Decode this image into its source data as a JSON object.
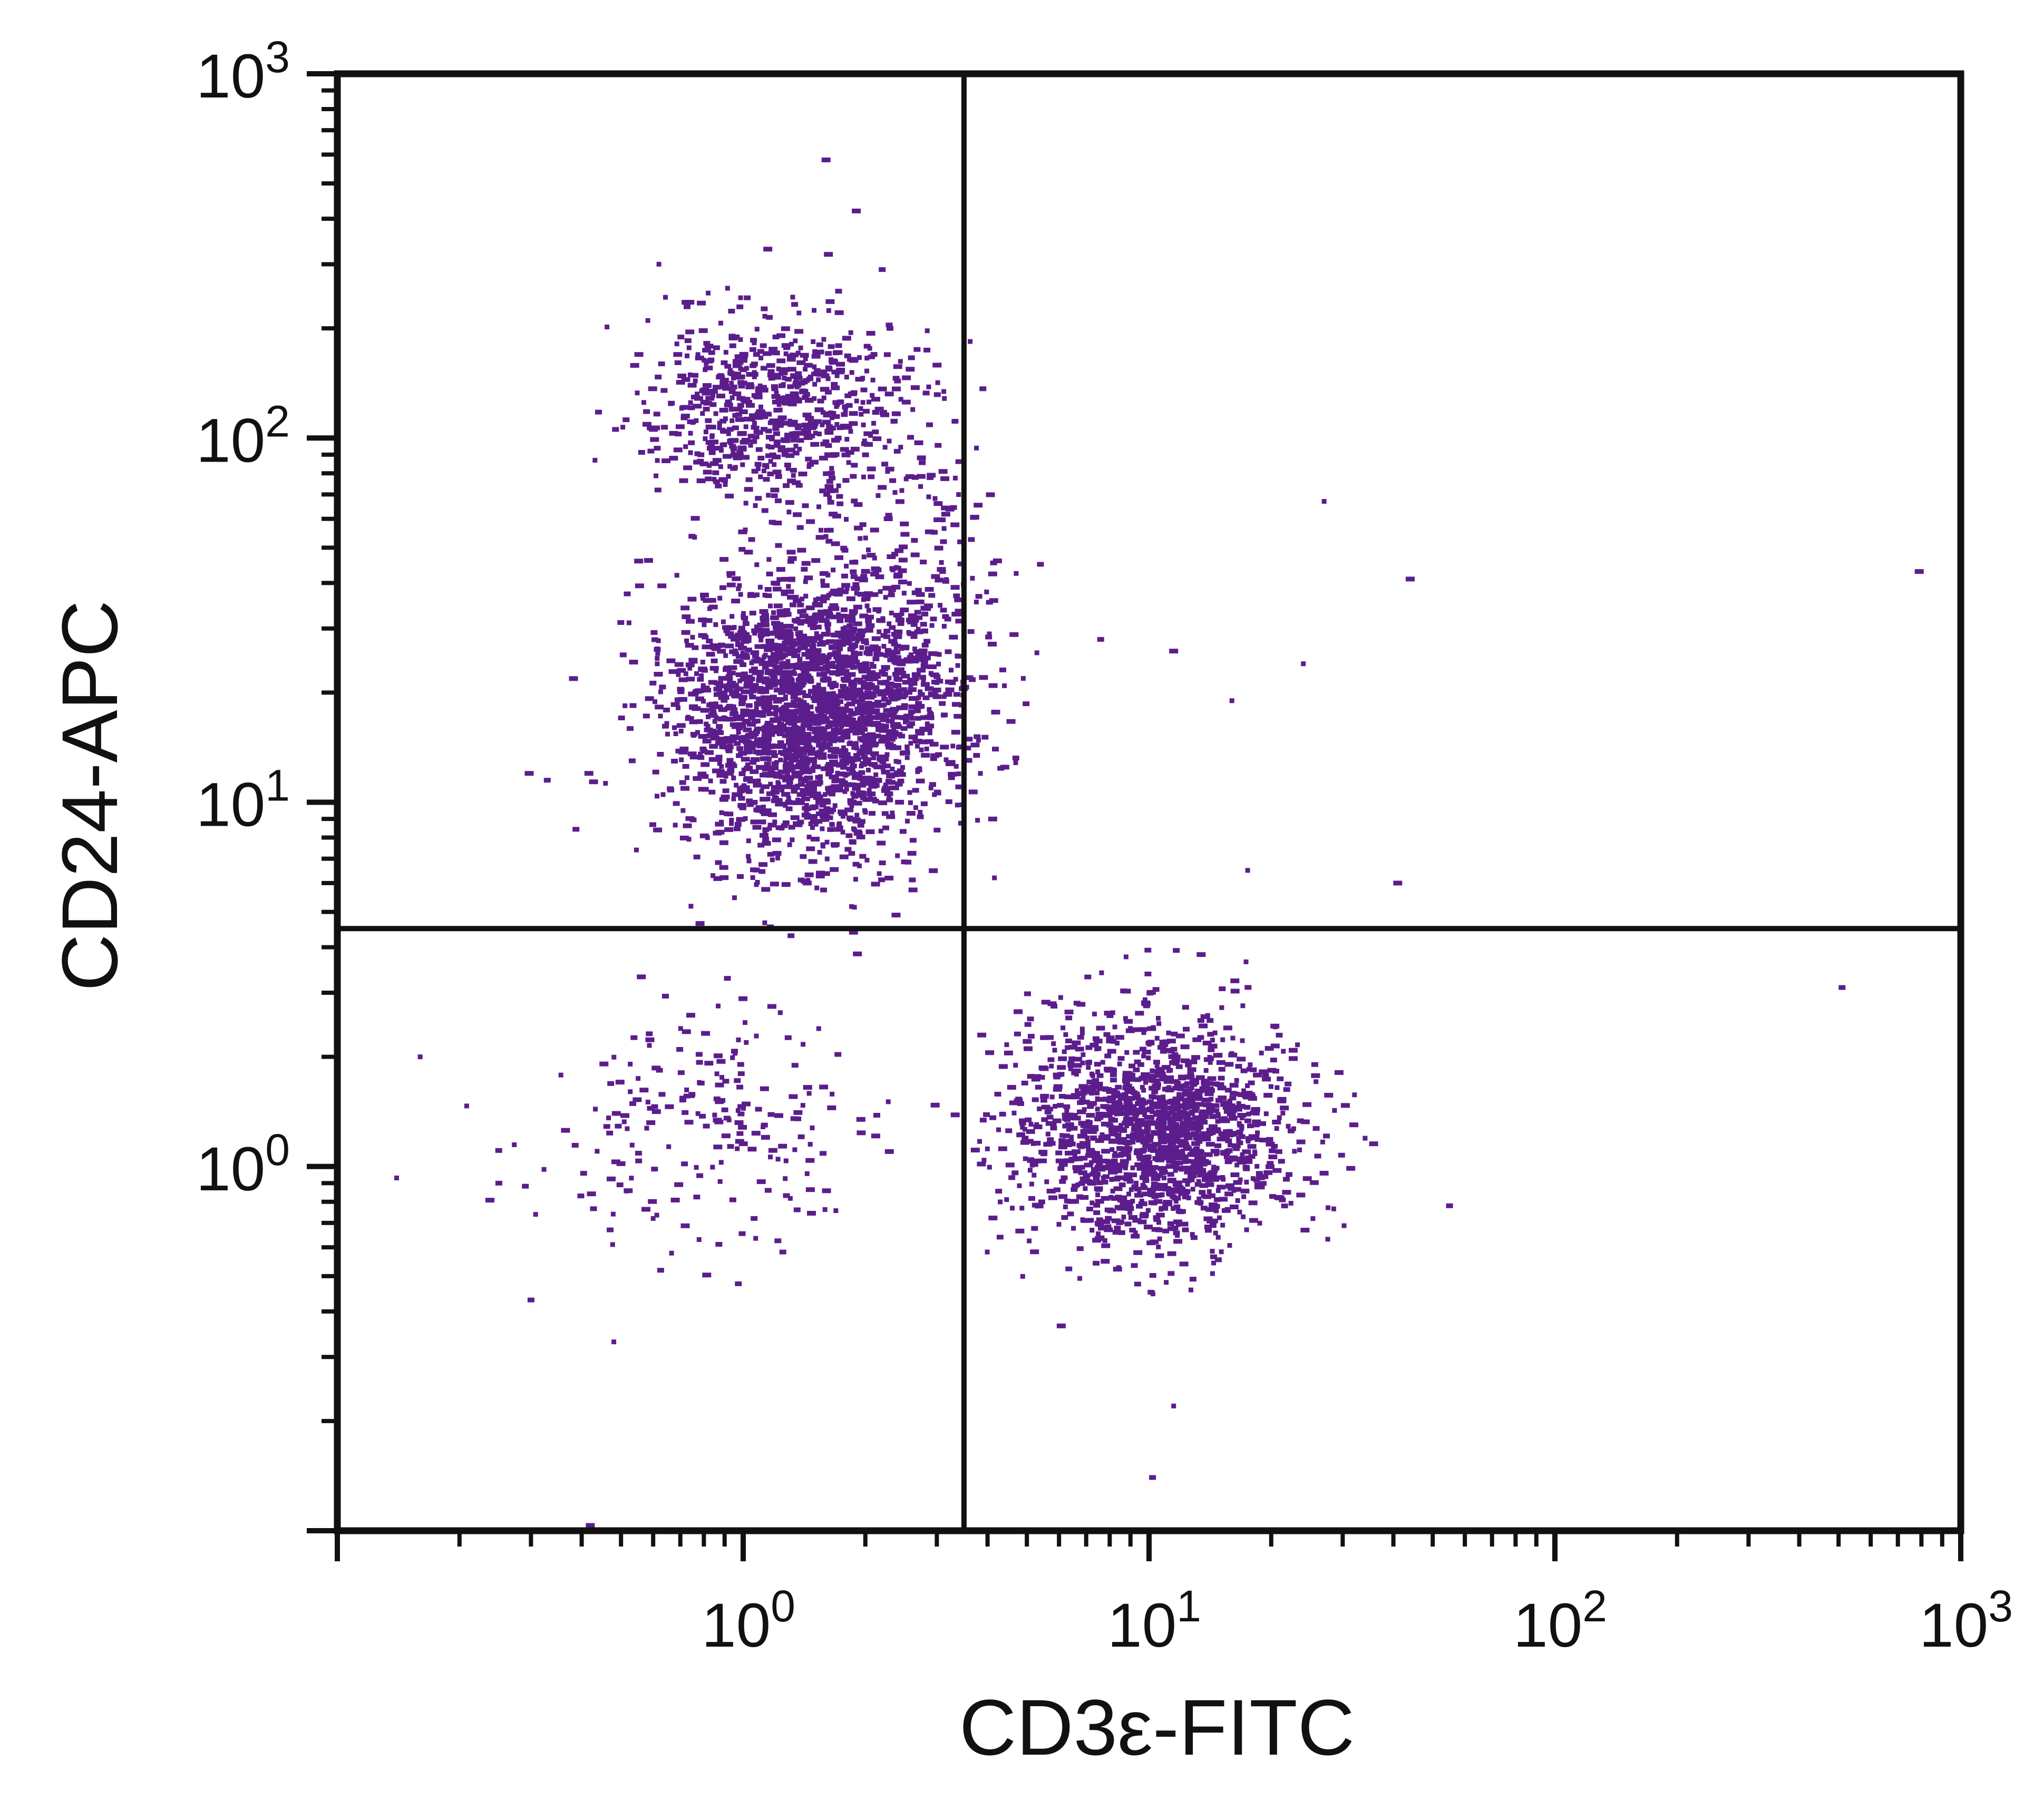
{
  "chart_data": {
    "type": "scatter",
    "title": "",
    "xlabel": "CD3ε-FITC",
    "ylabel": "CD24-APC",
    "x_scale": "log",
    "y_scale": "log",
    "xlim": [
      0.1,
      1000
    ],
    "ylim": [
      0.1,
      1000
    ],
    "x_tick_labels": [
      {
        "value": 1,
        "base": "10",
        "exp": "0"
      },
      {
        "value": 10,
        "base": "10",
        "exp": "1"
      },
      {
        "value": 100,
        "base": "10",
        "exp": "2"
      },
      {
        "value": 1000,
        "base": "10",
        "exp": "3"
      }
    ],
    "y_tick_labels": [
      {
        "value": 1,
        "base": "10",
        "exp": "0"
      },
      {
        "value": 10,
        "base": "10",
        "exp": "1"
      },
      {
        "value": 100,
        "base": "10",
        "exp": "2"
      },
      {
        "value": 1000,
        "base": "10",
        "exp": "3"
      }
    ],
    "grid": false,
    "point_color": "#5c1d8c",
    "quadrant_gate": {
      "x": 3.5,
      "y": 4.5
    },
    "populations": [
      {
        "center": [
          1.5,
          18
        ],
        "spread": [
          0.17,
          0.2
        ],
        "count": 2400
      },
      {
        "center": [
          1.2,
          120
        ],
        "spread": [
          0.16,
          0.12
        ],
        "count": 700
      },
      {
        "center": [
          10.5,
          1.25
        ],
        "spread": [
          0.17,
          0.15
        ],
        "count": 1600
      },
      {
        "center": [
          0.8,
          1.3
        ],
        "spread": [
          0.2,
          0.17
        ],
        "count": 210
      },
      {
        "center": [
          2.5,
          40
        ],
        "spread": [
          0.12,
          0.25
        ],
        "count": 160
      }
    ],
    "outliers": [
      [
        0.14,
        0.93
      ],
      [
        0.16,
        2.0
      ],
      [
        0.3,
        0.43
      ],
      [
        0.42,
        0.1
      ],
      [
        0.48,
        0.33
      ],
      [
        0.25,
        0.9
      ],
      [
        0.6,
        0.72
      ],
      [
        0.62,
        300
      ],
      [
        0.82,
        250
      ],
      [
        1.15,
        330
      ],
      [
        1.6,
        580
      ],
      [
        1.9,
        420
      ],
      [
        2.2,
        290
      ],
      [
        2.3,
        200
      ],
      [
        5.4,
        45
      ],
      [
        7.6,
        28
      ],
      [
        10.2,
        0.14
      ],
      [
        11.5,
        26
      ],
      [
        16,
        19
      ],
      [
        17.5,
        6.5
      ],
      [
        24,
        24
      ],
      [
        27,
        67
      ],
      [
        44,
        41
      ],
      [
        41,
        6.0
      ],
      [
        55,
        0.78
      ],
      [
        790,
        43
      ],
      [
        510,
        3.1
      ],
      [
        11.5,
        0.22
      ]
    ]
  }
}
